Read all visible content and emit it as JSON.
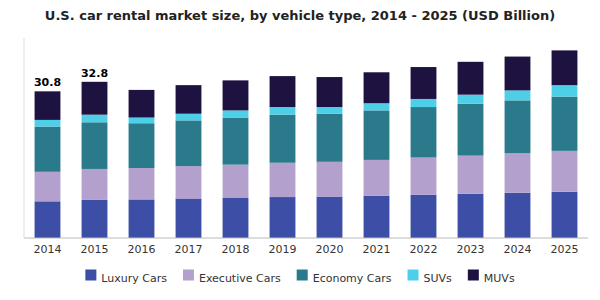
{
  "chart_data": {
    "type": "bar",
    "title": "U.S. car rental market size, by vehicle type, 2014 - 2025 (USD Billion)",
    "categories": [
      "2014",
      "2015",
      "2016",
      "2017",
      "2018",
      "2019",
      "2020",
      "2021",
      "2022",
      "2023",
      "2024",
      "2025"
    ],
    "series": [
      {
        "name": "Luxury Cars",
        "color": "#3d4ea6",
        "values": [
          7.7,
          8.0,
          8.1,
          8.3,
          8.4,
          8.6,
          8.7,
          8.9,
          9.1,
          9.3,
          9.5,
          9.7
        ]
      },
      {
        "name": "Executive Cars",
        "color": "#b3a0cc",
        "values": [
          6.2,
          6.5,
          6.6,
          6.8,
          7.0,
          7.2,
          7.3,
          7.5,
          7.8,
          8.0,
          8.3,
          8.6
        ]
      },
      {
        "name": "Economy Cars",
        "color": "#2a7a8c",
        "values": [
          9.5,
          9.8,
          9.4,
          9.6,
          9.9,
          10.1,
          10.1,
          10.4,
          10.6,
          10.9,
          11.1,
          11.4
        ]
      },
      {
        "name": "SUVs",
        "color": "#4dcfe8",
        "values": [
          1.4,
          1.6,
          1.2,
          1.4,
          1.5,
          1.6,
          1.4,
          1.5,
          1.7,
          1.9,
          2.1,
          2.4
        ]
      },
      {
        "name": "MUVs",
        "color": "#1e1240",
        "values": [
          6.0,
          6.9,
          5.8,
          6.0,
          6.3,
          6.5,
          6.3,
          6.5,
          6.7,
          6.9,
          7.1,
          7.3
        ]
      }
    ],
    "annotations": [
      {
        "text": "30.8",
        "x": "2014"
      },
      {
        "text": "32.8",
        "x": "2015"
      }
    ],
    "ylim": [
      0,
      42
    ],
    "stacked": true,
    "grid": false,
    "legend": "bottom",
    "tick_labels": "x"
  }
}
